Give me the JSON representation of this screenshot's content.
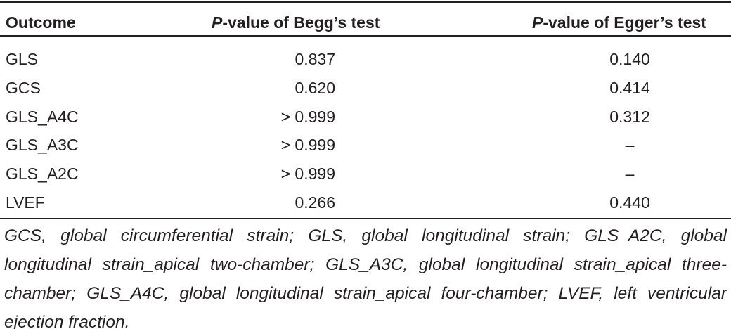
{
  "table": {
    "header": [
      {
        "text": "Outcome"
      },
      {
        "italic": "P",
        "text": "-value of Begg’s test"
      },
      {
        "italic": "P",
        "text": "-value of Egger’s test"
      }
    ],
    "rows": [
      [
        "GLS",
        "0.837",
        "0.140"
      ],
      [
        "GCS",
        "0.620",
        "0.414"
      ],
      [
        "GLS_A4C",
        "> 0.999",
        "0.312"
      ],
      [
        "GLS_A3C",
        "> 0.999",
        "–"
      ],
      [
        "GLS_A2C",
        "> 0.999",
        "–"
      ],
      [
        "LVEF",
        "0.266",
        "0.440"
      ]
    ],
    "footnote": "GCS, global circumferential strain; GLS, global longitudinal strain; GLS_A2C, global longitudinal strain_apical two-chamber; GLS_A3C, global longitudinal strain_apical three-chamber; GLS_A4C, global longitudinal strain_apical four-chamber; LVEF, left ventricular ejection fraction."
  }
}
